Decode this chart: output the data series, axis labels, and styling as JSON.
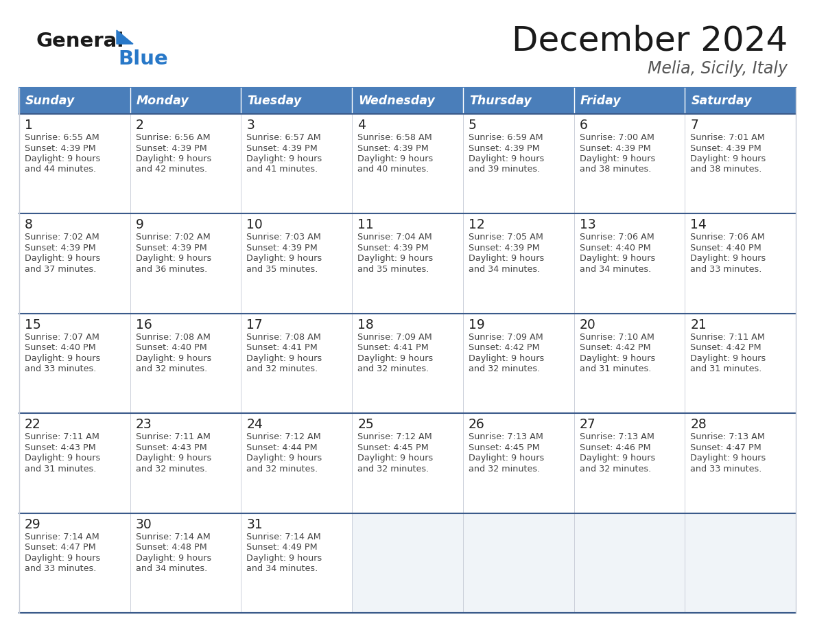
{
  "title": "December 2024",
  "subtitle": "Melia, Sicily, Italy",
  "days_of_week": [
    "Sunday",
    "Monday",
    "Tuesday",
    "Wednesday",
    "Thursday",
    "Friday",
    "Saturday"
  ],
  "header_bg": "#4a7eba",
  "header_text": "#ffffff",
  "cell_bg_white": "#ffffff",
  "cell_bg_light": "#f0f4f8",
  "cell_border_light": "#c8cdd8",
  "cell_border_dark": "#3a5a8a",
  "day_number_color": "#222222",
  "info_text_color": "#444444",
  "title_color": "#1a1a1a",
  "subtitle_color": "#555555",
  "logo_general_color": "#1a1a1a",
  "logo_blue_color": "#2878c8",
  "calendar_data": [
    [
      {
        "day": 1,
        "sunrise": "6:55 AM",
        "sunset": "4:39 PM",
        "daylight_line1": "9 hours",
        "daylight_line2": "and 44 minutes."
      },
      {
        "day": 2,
        "sunrise": "6:56 AM",
        "sunset": "4:39 PM",
        "daylight_line1": "9 hours",
        "daylight_line2": "and 42 minutes."
      },
      {
        "day": 3,
        "sunrise": "6:57 AM",
        "sunset": "4:39 PM",
        "daylight_line1": "9 hours",
        "daylight_line2": "and 41 minutes."
      },
      {
        "day": 4,
        "sunrise": "6:58 AM",
        "sunset": "4:39 PM",
        "daylight_line1": "9 hours",
        "daylight_line2": "and 40 minutes."
      },
      {
        "day": 5,
        "sunrise": "6:59 AM",
        "sunset": "4:39 PM",
        "daylight_line1": "9 hours",
        "daylight_line2": "and 39 minutes."
      },
      {
        "day": 6,
        "sunrise": "7:00 AM",
        "sunset": "4:39 PM",
        "daylight_line1": "9 hours",
        "daylight_line2": "and 38 minutes."
      },
      {
        "day": 7,
        "sunrise": "7:01 AM",
        "sunset": "4:39 PM",
        "daylight_line1": "9 hours",
        "daylight_line2": "and 38 minutes."
      }
    ],
    [
      {
        "day": 8,
        "sunrise": "7:02 AM",
        "sunset": "4:39 PM",
        "daylight_line1": "9 hours",
        "daylight_line2": "and 37 minutes."
      },
      {
        "day": 9,
        "sunrise": "7:02 AM",
        "sunset": "4:39 PM",
        "daylight_line1": "9 hours",
        "daylight_line2": "and 36 minutes."
      },
      {
        "day": 10,
        "sunrise": "7:03 AM",
        "sunset": "4:39 PM",
        "daylight_line1": "9 hours",
        "daylight_line2": "and 35 minutes."
      },
      {
        "day": 11,
        "sunrise": "7:04 AM",
        "sunset": "4:39 PM",
        "daylight_line1": "9 hours",
        "daylight_line2": "and 35 minutes."
      },
      {
        "day": 12,
        "sunrise": "7:05 AM",
        "sunset": "4:39 PM",
        "daylight_line1": "9 hours",
        "daylight_line2": "and 34 minutes."
      },
      {
        "day": 13,
        "sunrise": "7:06 AM",
        "sunset": "4:40 PM",
        "daylight_line1": "9 hours",
        "daylight_line2": "and 34 minutes."
      },
      {
        "day": 14,
        "sunrise": "7:06 AM",
        "sunset": "4:40 PM",
        "daylight_line1": "9 hours",
        "daylight_line2": "and 33 minutes."
      }
    ],
    [
      {
        "day": 15,
        "sunrise": "7:07 AM",
        "sunset": "4:40 PM",
        "daylight_line1": "9 hours",
        "daylight_line2": "and 33 minutes."
      },
      {
        "day": 16,
        "sunrise": "7:08 AM",
        "sunset": "4:40 PM",
        "daylight_line1": "9 hours",
        "daylight_line2": "and 32 minutes."
      },
      {
        "day": 17,
        "sunrise": "7:08 AM",
        "sunset": "4:41 PM",
        "daylight_line1": "9 hours",
        "daylight_line2": "and 32 minutes."
      },
      {
        "day": 18,
        "sunrise": "7:09 AM",
        "sunset": "4:41 PM",
        "daylight_line1": "9 hours",
        "daylight_line2": "and 32 minutes."
      },
      {
        "day": 19,
        "sunrise": "7:09 AM",
        "sunset": "4:42 PM",
        "daylight_line1": "9 hours",
        "daylight_line2": "and 32 minutes."
      },
      {
        "day": 20,
        "sunrise": "7:10 AM",
        "sunset": "4:42 PM",
        "daylight_line1": "9 hours",
        "daylight_line2": "and 31 minutes."
      },
      {
        "day": 21,
        "sunrise": "7:11 AM",
        "sunset": "4:42 PM",
        "daylight_line1": "9 hours",
        "daylight_line2": "and 31 minutes."
      }
    ],
    [
      {
        "day": 22,
        "sunrise": "7:11 AM",
        "sunset": "4:43 PM",
        "daylight_line1": "9 hours",
        "daylight_line2": "and 31 minutes."
      },
      {
        "day": 23,
        "sunrise": "7:11 AM",
        "sunset": "4:43 PM",
        "daylight_line1": "9 hours",
        "daylight_line2": "and 32 minutes."
      },
      {
        "day": 24,
        "sunrise": "7:12 AM",
        "sunset": "4:44 PM",
        "daylight_line1": "9 hours",
        "daylight_line2": "and 32 minutes."
      },
      {
        "day": 25,
        "sunrise": "7:12 AM",
        "sunset": "4:45 PM",
        "daylight_line1": "9 hours",
        "daylight_line2": "and 32 minutes."
      },
      {
        "day": 26,
        "sunrise": "7:13 AM",
        "sunset": "4:45 PM",
        "daylight_line1": "9 hours",
        "daylight_line2": "and 32 minutes."
      },
      {
        "day": 27,
        "sunrise": "7:13 AM",
        "sunset": "4:46 PM",
        "daylight_line1": "9 hours",
        "daylight_line2": "and 32 minutes."
      },
      {
        "day": 28,
        "sunrise": "7:13 AM",
        "sunset": "4:47 PM",
        "daylight_line1": "9 hours",
        "daylight_line2": "and 33 minutes."
      }
    ],
    [
      {
        "day": 29,
        "sunrise": "7:14 AM",
        "sunset": "4:47 PM",
        "daylight_line1": "9 hours",
        "daylight_line2": "and 33 minutes."
      },
      {
        "day": 30,
        "sunrise": "7:14 AM",
        "sunset": "4:48 PM",
        "daylight_line1": "9 hours",
        "daylight_line2": "and 34 minutes."
      },
      {
        "day": 31,
        "sunrise": "7:14 AM",
        "sunset": "4:49 PM",
        "daylight_line1": "9 hours",
        "daylight_line2": "and 34 minutes."
      },
      null,
      null,
      null,
      null
    ]
  ]
}
